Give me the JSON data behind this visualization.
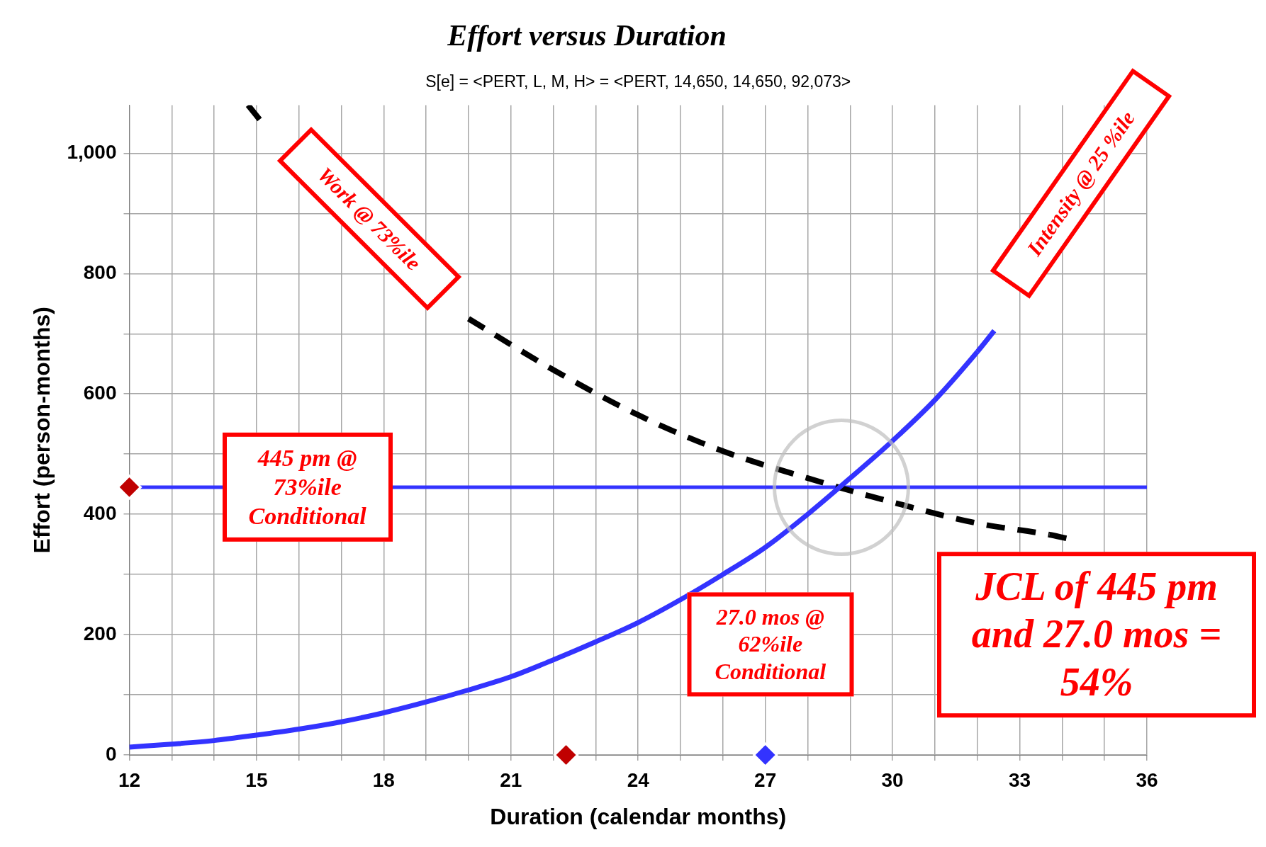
{
  "chart_data": {
    "type": "line",
    "title": "Effort versus Duration",
    "subtitle": "S[e] = <PERT, L, M, H> = <PERT, 14,650, 14,650, 92,073>",
    "xlabel": "Duration (calendar months)",
    "ylabel": "Effort (person-months)",
    "xlim": [
      12,
      36
    ],
    "ylim": [
      0,
      1080
    ],
    "xticks": [
      12,
      {
        "value": 13,
        "label": null
      },
      {
        "value": 14,
        "label": null
      },
      15,
      {
        "value": 16,
        "label": null
      },
      {
        "value": 17,
        "label": null
      },
      18,
      {
        "value": 19,
        "label": null
      },
      {
        "value": 20,
        "label": null
      },
      21,
      {
        "value": 22,
        "label": null
      },
      {
        "value": 23,
        "label": null
      },
      24,
      {
        "value": 25,
        "label": null
      },
      {
        "value": 26,
        "label": null
      },
      27,
      {
        "value": 28,
        "label": null
      },
      {
        "value": 29,
        "label": null
      },
      30,
      {
        "value": 31,
        "label": null
      },
      {
        "value": 32,
        "label": null
      },
      33,
      {
        "value": 34,
        "label": null
      },
      {
        "value": 35,
        "label": null
      },
      36
    ],
    "yticks": [
      0,
      {
        "value": 100,
        "label": null
      },
      200,
      {
        "value": 300,
        "label": null
      },
      400,
      {
        "value": 500,
        "label": null
      },
      600,
      {
        "value": 700,
        "label": null
      },
      800,
      {
        "value": 900,
        "label": null
      },
      {
        "value": 1000,
        "label": "1,000"
      }
    ],
    "grid": true,
    "legend": false,
    "series": [
      {
        "type": "line",
        "color": "#3333ff",
        "line_style": "solid",
        "marker": "none",
        "x": [
          12,
          13,
          14,
          15,
          16,
          17,
          18,
          19,
          20,
          21,
          22,
          23,
          24,
          25,
          26,
          27,
          28,
          29,
          30,
          31,
          32,
          32.4
        ],
        "values": [
          13,
          18,
          24,
          33,
          43,
          55,
          70,
          88,
          108,
          130,
          158,
          188,
          220,
          258,
          300,
          345,
          400,
          460,
          522,
          590,
          670,
          705
        ]
      },
      {
        "type": "line",
        "color": "#000000",
        "line_style": "dashed",
        "marker": "none",
        "x": [
          14.8,
          15.2,
          16,
          17,
          18,
          19,
          20,
          22,
          24,
          26,
          28,
          30,
          32,
          33.7,
          34.1
        ],
        "values": [
          1080,
          1045,
          null,
          null,
          null,
          null,
          725,
          640,
          565,
          505,
          460,
          420,
          385,
          366,
          360
        ]
      },
      {
        "type": "scatter",
        "marker": "diamond",
        "colors": [
          "#c00000",
          "#c00000",
          "#3333ff"
        ],
        "x": [
          12,
          22.3,
          27
        ],
        "values": [
          445,
          0,
          0
        ]
      }
    ],
    "ref_lines": [
      {
        "axis": "y",
        "value": 445,
        "color": "#3333ff",
        "line_style": "solid"
      }
    ],
    "annotations": [
      "Work @  73%ile",
      "Intensity @ 25 %ile",
      {
        "text": "445 pm @ 73%ile Conditional",
        "x": 16.2,
        "y": 445
      },
      "27.0 mos @ 62%ile Conditional",
      "JCL of 445 pm and 27.0 mos = 54%"
    ]
  }
}
